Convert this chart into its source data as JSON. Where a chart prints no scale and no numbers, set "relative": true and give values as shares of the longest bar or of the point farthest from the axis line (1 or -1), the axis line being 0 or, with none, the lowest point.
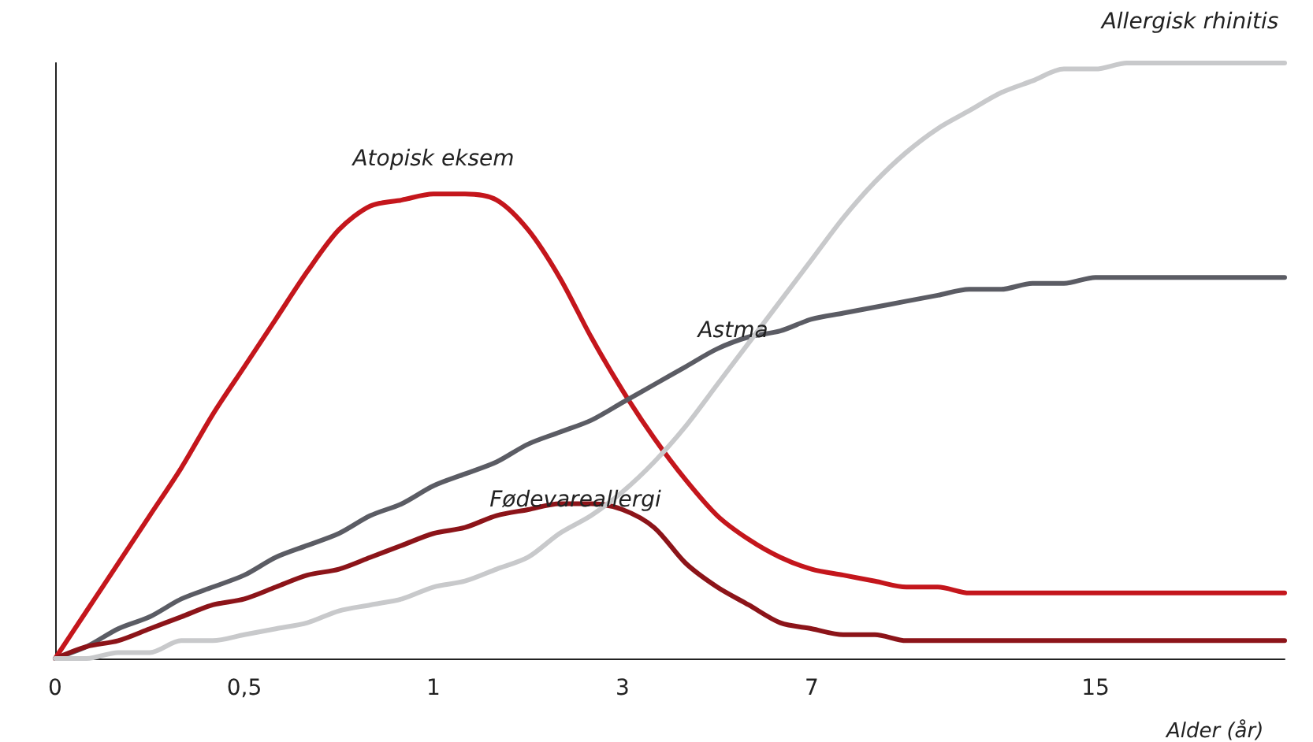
{
  "chart_data": {
    "type": "line",
    "relative": true,
    "xlabel": "Alder (år)",
    "categories": [
      "0",
      null,
      null,
      null,
      null,
      null,
      "0,5",
      null,
      null,
      null,
      null,
      null,
      "1",
      null,
      null,
      null,
      null,
      null,
      "3",
      null,
      null,
      null,
      null,
      null,
      "7",
      null,
      null,
      null,
      null,
      null,
      null,
      null,
      null,
      "15",
      null,
      null,
      null,
      null,
      null,
      null
    ],
    "series": [
      {
        "name": "Atopisk eksem",
        "color": "#c4161c",
        "values": [
          0,
          0.08,
          0.16,
          0.24,
          0.32,
          0.41,
          0.49,
          0.57,
          0.65,
          0.72,
          0.76,
          0.77,
          0.78,
          0.78,
          0.77,
          0.72,
          0.64,
          0.54,
          0.45,
          0.37,
          0.3,
          0.24,
          0.2,
          0.17,
          0.15,
          0.14,
          0.13,
          0.12,
          0.12,
          0.11,
          0.11,
          0.11,
          0.11,
          0.11,
          0.11,
          0.11,
          0.11,
          0.11,
          0.11,
          0.11
        ]
      },
      {
        "name": "Astma",
        "color": "#5b5c64",
        "values": [
          0,
          0.02,
          0.05,
          0.07,
          0.1,
          0.12,
          0.14,
          0.17,
          0.19,
          0.21,
          0.24,
          0.26,
          0.29,
          0.31,
          0.33,
          0.36,
          0.38,
          0.4,
          0.43,
          0.46,
          0.49,
          0.52,
          0.54,
          0.55,
          0.57,
          0.58,
          0.59,
          0.6,
          0.61,
          0.62,
          0.62,
          0.63,
          0.63,
          0.64,
          0.64,
          0.64,
          0.64,
          0.64,
          0.64,
          0.64
        ]
      },
      {
        "name": "Fødevareallergi",
        "color": "#8c1419",
        "values": [
          0,
          0.02,
          0.03,
          0.05,
          0.07,
          0.09,
          0.1,
          0.12,
          0.14,
          0.15,
          0.17,
          0.19,
          0.21,
          0.22,
          0.24,
          0.25,
          0.26,
          0.26,
          0.25,
          0.22,
          0.16,
          0.12,
          0.09,
          0.06,
          0.05,
          0.04,
          0.04,
          0.03,
          0.03,
          0.03,
          0.03,
          0.03,
          0.03,
          0.03,
          0.03,
          0.03,
          0.03,
          0.03,
          0.03,
          0.03
        ]
      },
      {
        "name": "Allergisk rhinitis",
        "color": "#c8c9cb",
        "values": [
          0,
          0,
          0.01,
          0.01,
          0.03,
          0.03,
          0.04,
          0.05,
          0.06,
          0.08,
          0.09,
          0.1,
          0.12,
          0.13,
          0.15,
          0.17,
          0.21,
          0.24,
          0.28,
          0.33,
          0.39,
          0.46,
          0.53,
          0.6,
          0.67,
          0.74,
          0.8,
          0.85,
          0.89,
          0.92,
          0.95,
          0.97,
          0.99,
          0.99,
          1,
          1,
          1,
          1,
          1,
          1
        ]
      }
    ],
    "legend": false,
    "grid": false,
    "marker": "none",
    "line_style": "solid"
  }
}
